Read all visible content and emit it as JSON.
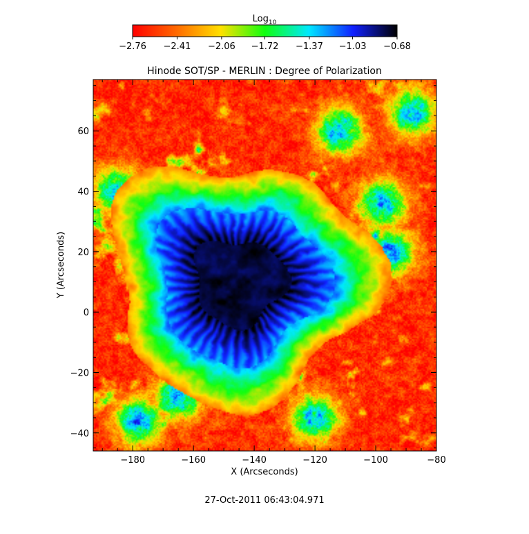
{
  "chart_data": {
    "type": "heatmap",
    "title": "Hinode SOT/SP - MERLIN : Degree of Polarization",
    "xlabel": "X (Arcseconds)",
    "ylabel": "Y (Arcseconds)",
    "xlim": [
      -193,
      -80
    ],
    "ylim": [
      -46,
      77
    ],
    "x_ticks": [
      -180,
      -160,
      -140,
      -120,
      -100,
      -80
    ],
    "y_ticks": [
      -40,
      -20,
      0,
      20,
      40,
      60
    ],
    "x_tick_labels": [
      "−180",
      "−160",
      "−140",
      "−120",
      "−100",
      "−80"
    ],
    "y_tick_labels": [
      "−40",
      "−20",
      "0",
      "20",
      "40",
      "60"
    ],
    "colorbar": {
      "label_base": "Log",
      "label_sub": "10",
      "range": [
        -2.76,
        -0.68
      ],
      "tick_values": [
        -2.76,
        -2.41,
        -2.06,
        -1.72,
        -1.37,
        -1.03,
        -0.68
      ],
      "tick_labels": [
        "−2.76",
        "−2.41",
        "−2.06",
        "−1.72",
        "−1.37",
        "−1.03",
        "−0.68"
      ],
      "colors": [
        "#ff0000",
        "#ff6a00",
        "#ffe000",
        "#10ff10",
        "#00e8ff",
        "#1020ff",
        "#000000"
      ]
    },
    "features": {
      "sunspot_center": [
        -145,
        10
      ],
      "umbra_log_level": -0.75,
      "penumbra_log_level": -1.2,
      "quiet_sun_log_level": -2.6
    },
    "timestamp": "27-Oct-2011 06:43:04.971"
  }
}
